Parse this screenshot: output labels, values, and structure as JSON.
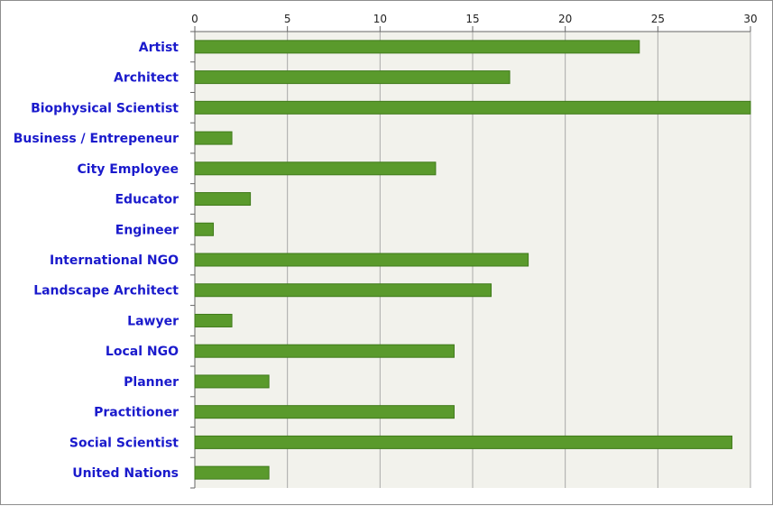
{
  "chart_data": {
    "type": "bar",
    "orientation": "horizontal",
    "categories": [
      "Artist",
      "Architect",
      "Biophysical Scientist",
      "Business / Entrepeneur",
      "City Employee",
      "Educator",
      "Engineer",
      "International NGO",
      "Landscape Architect",
      "Lawyer",
      "Local NGO",
      "Planner",
      "Practitioner",
      "Social Scientist",
      "United Nations"
    ],
    "values": [
      24,
      17,
      30,
      2,
      13,
      3,
      1,
      18,
      16,
      2,
      14,
      4,
      14,
      29,
      4
    ],
    "xlim": [
      0,
      30
    ],
    "xticks": [
      "0",
      "5",
      "10",
      "15",
      "20",
      "25",
      "30"
    ],
    "x_axis_position": "top",
    "grid": true,
    "legend": "none",
    "title": "",
    "xlabel": "",
    "ylabel": "",
    "colors": {
      "bar": "#5a9a2c",
      "bar_edge": "#3f7a1a",
      "plot_background": "#f2f2ec",
      "gridline": "#a9a9a9",
      "category_label": "#1a1acc"
    }
  }
}
